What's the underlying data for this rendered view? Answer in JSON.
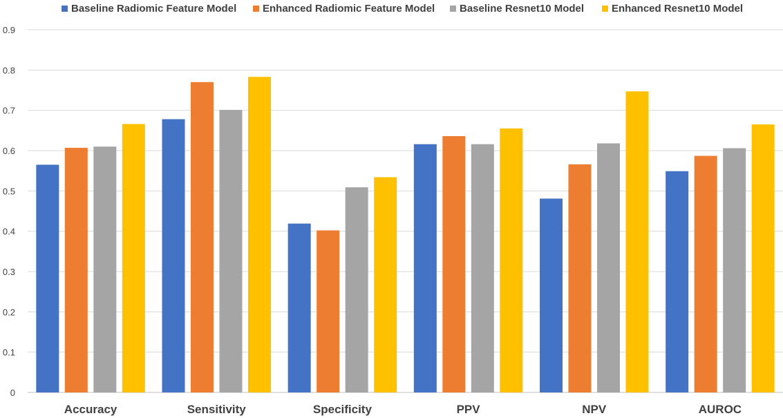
{
  "chart_data": {
    "type": "bar",
    "categories": [
      "Accuracy",
      "Sensitivity",
      "Specificity",
      "PPV",
      "NPV",
      "AUROC"
    ],
    "series": [
      {
        "name": "Baseline Radiomic Feature Model",
        "color": "#4472C4",
        "values": [
          0.565,
          0.678,
          0.419,
          0.616,
          0.481,
          0.549
        ]
      },
      {
        "name": "Enhanced Radiomic Feature Model",
        "color": "#ED7D31",
        "values": [
          0.607,
          0.77,
          0.402,
          0.636,
          0.566,
          0.587
        ]
      },
      {
        "name": "Baseline Resnet10 Model",
        "color": "#A5A5A5",
        "values": [
          0.61,
          0.701,
          0.509,
          0.616,
          0.618,
          0.606
        ]
      },
      {
        "name": "Enhanced Resnet10 Model",
        "color": "#FFC000",
        "values": [
          0.666,
          0.783,
          0.534,
          0.655,
          0.747,
          0.665
        ]
      }
    ],
    "ylim": [
      0,
      0.9
    ],
    "yticks": [
      "0",
      "0.1",
      "0.2",
      "0.3",
      "0.4",
      "0.5",
      "0.6",
      "0.7",
      "0.8",
      "0.9"
    ],
    "grid": true,
    "legend_position": "top"
  }
}
